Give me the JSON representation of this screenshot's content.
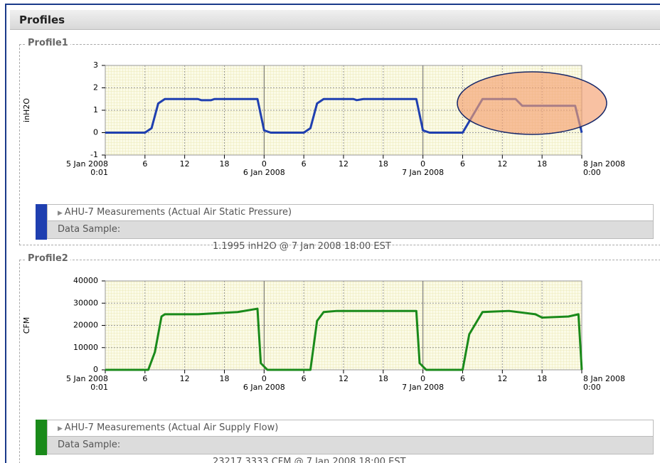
{
  "header": {
    "title": "Profiles"
  },
  "chart_data": [
    {
      "type": "line",
      "title": "Profile1",
      "y_label": "inH2O",
      "xlim": [
        0,
        72
      ],
      "ylim": [
        -1,
        3
      ],
      "yticks": [
        3,
        2,
        1,
        0,
        -1
      ],
      "xticks": [
        {
          "value": 0,
          "label": "5 Jan 2008\n0:01"
        },
        6,
        12,
        18,
        {
          "value": 24,
          "label": "0\n6 Jan 2008"
        },
        {
          "value": 30,
          "label": "6"
        },
        {
          "value": 36,
          "label": "12"
        },
        {
          "value": 42,
          "label": "18"
        },
        {
          "value": 48,
          "label": "0\n7 Jan 2008"
        },
        {
          "value": 54,
          "label": "6"
        },
        {
          "value": 60,
          "label": "12"
        },
        {
          "value": 66,
          "label": "18"
        },
        {
          "value": 72,
          "label": "8 Jan 2008\n0:00"
        }
      ],
      "grid": true,
      "x": [
        0,
        6,
        7,
        8,
        9,
        14,
        14.5,
        16,
        16.5,
        23,
        24,
        25,
        30,
        31,
        32,
        33,
        37.5,
        38,
        39,
        47,
        48,
        49,
        54,
        56,
        57,
        62,
        63,
        71,
        72
      ],
      "series": [
        {
          "name": "AHU-7 Measurements (Actual Air Static Pressure)",
          "color": "#1f3fb0",
          "values": [
            0,
            0,
            0.2,
            1.3,
            1.5,
            1.5,
            1.45,
            1.45,
            1.5,
            1.5,
            0.1,
            0,
            0,
            0.2,
            1.3,
            1.5,
            1.5,
            1.45,
            1.5,
            1.5,
            0.1,
            0,
            0,
            1,
            1.5,
            1.5,
            1.2,
            1.2,
            0
          ]
        }
      ],
      "sample_label": "Data Sample:",
      "sample_value": "1.1995 inH2O @ 7 Jan 2008 18:00 EST"
    },
    {
      "type": "line",
      "title": "Profile2",
      "y_label": "CFM",
      "xlim": [
        0,
        72
      ],
      "ylim": [
        0,
        40000
      ],
      "yticks": [
        40000,
        30000,
        20000,
        10000,
        0
      ],
      "xticks": [
        {
          "value": 0,
          "label": "5 Jan 2008\n0:01"
        },
        6,
        12,
        18,
        {
          "value": 24,
          "label": "0\n6 Jan 2008"
        },
        {
          "value": 30,
          "label": "6"
        },
        {
          "value": 36,
          "label": "12"
        },
        {
          "value": 42,
          "label": "18"
        },
        {
          "value": 48,
          "label": "0\n7 Jan 2008"
        },
        {
          "value": 54,
          "label": "6"
        },
        {
          "value": 60,
          "label": "12"
        },
        {
          "value": 66,
          "label": "18"
        },
        {
          "value": 72,
          "label": "8 Jan 2008\n0:00"
        }
      ],
      "grid": true,
      "x": [
        0,
        6.5,
        7.5,
        8.5,
        9,
        14,
        20,
        23,
        23.5,
        24.5,
        31,
        32,
        33,
        35,
        47,
        47.5,
        48.5,
        54,
        55,
        57,
        61,
        65,
        66,
        70,
        71.5,
        72
      ],
      "series": [
        {
          "name": "AHU-7 Measurements (Actual Air Supply Flow)",
          "color": "#1a8a1a",
          "values": [
            0,
            0,
            8000,
            24000,
            25000,
            25000,
            26000,
            27500,
            3000,
            0,
            0,
            22000,
            26000,
            26500,
            26500,
            3000,
            0,
            0,
            16000,
            26000,
            26500,
            25000,
            23500,
            24000,
            25000,
            0
          ]
        }
      ],
      "sample_label": "Data Sample:",
      "sample_value": "23217.3333 CFM @ 7 Jan 2008 18:00 EST"
    }
  ]
}
